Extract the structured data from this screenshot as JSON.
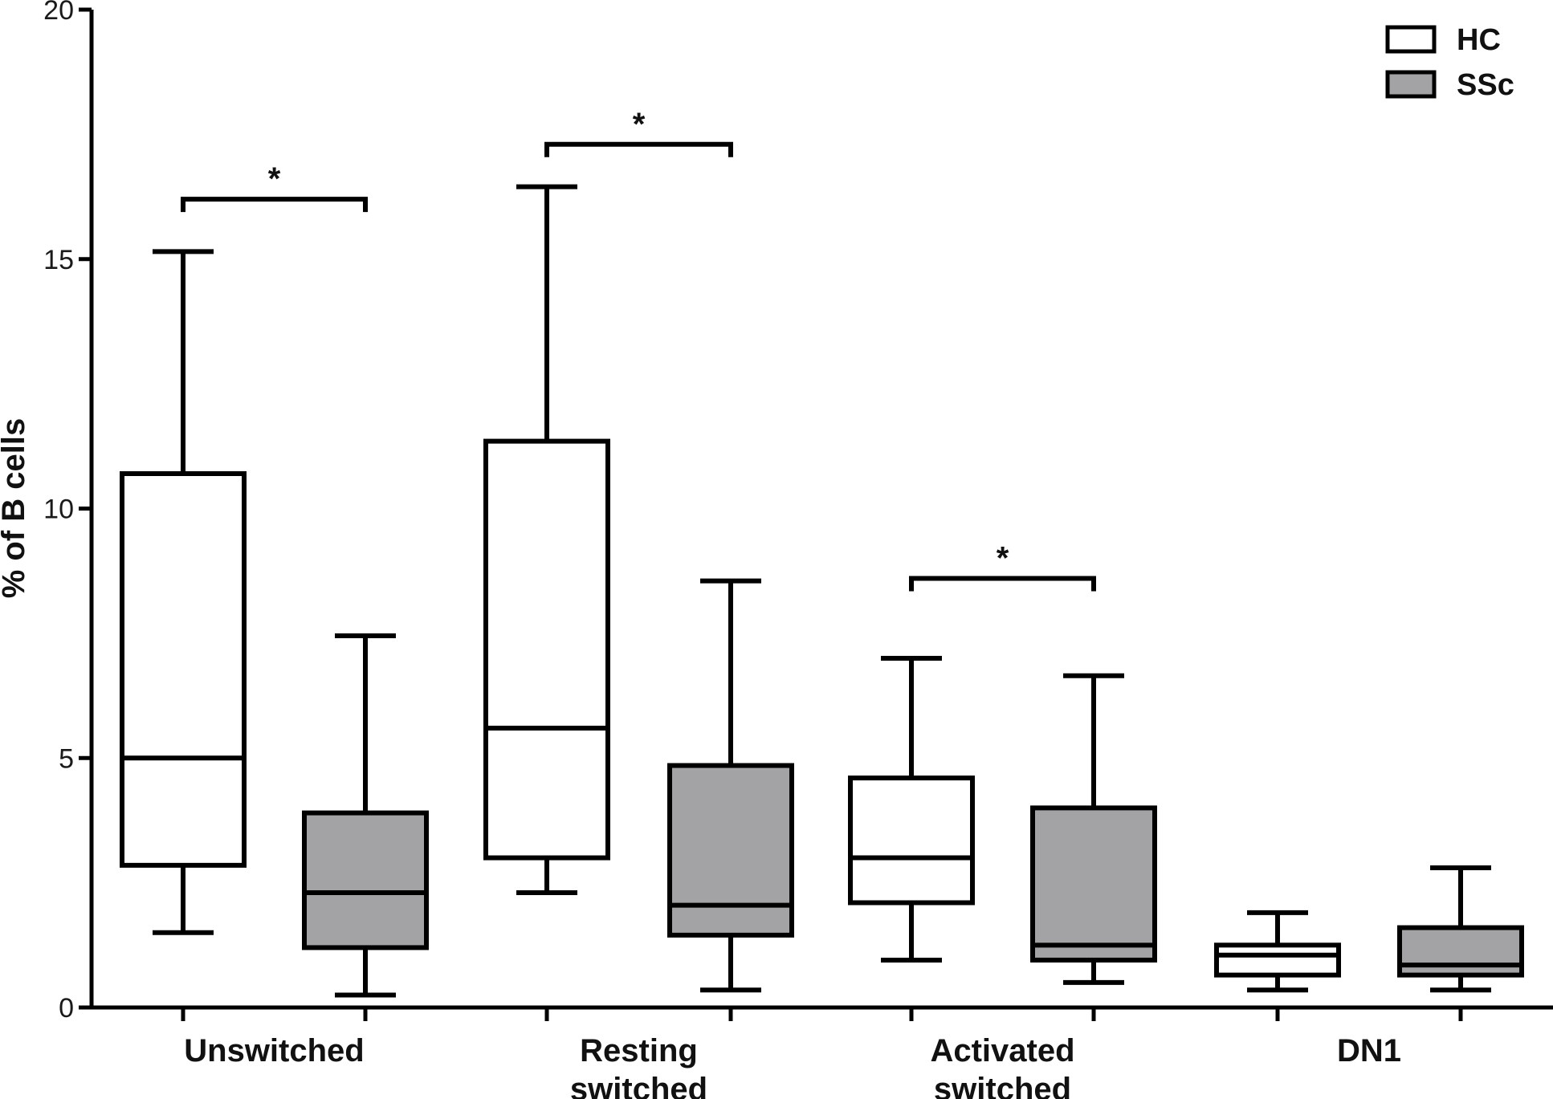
{
  "chart_data": {
    "type": "box",
    "title": "",
    "xlabel": "",
    "ylabel": "% of B cells",
    "ylim": [
      0,
      20
    ],
    "yticks": [
      0,
      5,
      10,
      15,
      20
    ],
    "grid": false,
    "legend_position": "top-right",
    "categories": [
      {
        "lines": [
          "Unswitched"
        ]
      },
      {
        "lines": [
          "Resting",
          "switched"
        ]
      },
      {
        "lines": [
          "Activated",
          "switched"
        ]
      },
      {
        "lines": [
          "DN1"
        ]
      }
    ],
    "series": [
      {
        "name": "HC",
        "color": "#ffffff",
        "boxes": [
          {
            "min": 1.5,
            "q1": 2.85,
            "median": 5.0,
            "q3": 10.7,
            "max": 15.15
          },
          {
            "min": 2.3,
            "q1": 3.0,
            "median": 5.6,
            "q3": 11.35,
            "max": 16.45
          },
          {
            "min": 0.95,
            "q1": 2.1,
            "median": 3.0,
            "q3": 4.6,
            "max": 7.0
          },
          {
            "min": 0.35,
            "q1": 0.65,
            "median": 1.05,
            "q3": 1.25,
            "max": 1.9
          }
        ]
      },
      {
        "name": "SSc",
        "color": "#a3a3a6",
        "boxes": [
          {
            "min": 0.25,
            "q1": 1.2,
            "median": 2.3,
            "q3": 3.9,
            "max": 7.45
          },
          {
            "min": 0.35,
            "q1": 1.45,
            "median": 2.05,
            "q3": 4.85,
            "max": 8.55
          },
          {
            "min": 0.5,
            "q1": 0.95,
            "median": 1.25,
            "q3": 4.0,
            "max": 6.65
          },
          {
            "min": 0.35,
            "q1": 0.65,
            "median": 0.85,
            "q3": 1.6,
            "max": 2.8
          }
        ]
      }
    ],
    "significance": [
      {
        "category": 0,
        "label": "*",
        "y": 16.2
      },
      {
        "category": 1,
        "label": "*",
        "y": 17.3
      },
      {
        "category": 2,
        "label": "*",
        "y": 8.6
      }
    ]
  }
}
